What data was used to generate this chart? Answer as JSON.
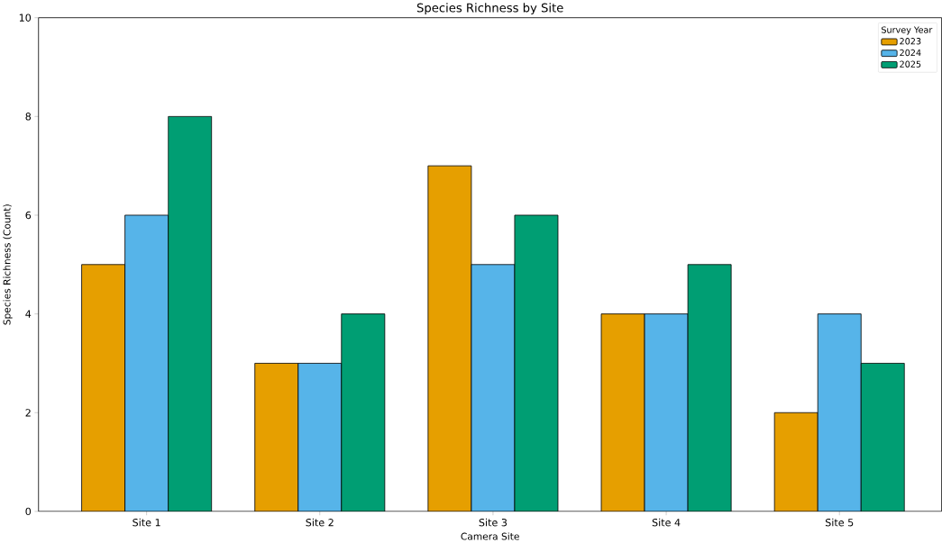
{
  "chart_data": {
    "type": "bar",
    "title": "Species Richness by Site",
    "xlabel": "Camera Site",
    "ylabel": "Species Richness (Count)",
    "legend_title": "Survey Year",
    "categories": [
      "Site 1",
      "Site 2",
      "Site 3",
      "Site 4",
      "Site 5"
    ],
    "series": [
      {
        "name": "2023",
        "color": "#e69f00",
        "values": [
          5,
          3,
          7,
          4,
          2
        ]
      },
      {
        "name": "2024",
        "color": "#56b4e9",
        "values": [
          6,
          3,
          5,
          4,
          4
        ]
      },
      {
        "name": "2025",
        "color": "#009e73",
        "values": [
          8,
          4,
          6,
          5,
          3
        ]
      }
    ],
    "ylim": [
      0,
      10
    ],
    "yticks": [
      0,
      2,
      4,
      6,
      8,
      10
    ],
    "grid": false,
    "legend": "top right"
  }
}
